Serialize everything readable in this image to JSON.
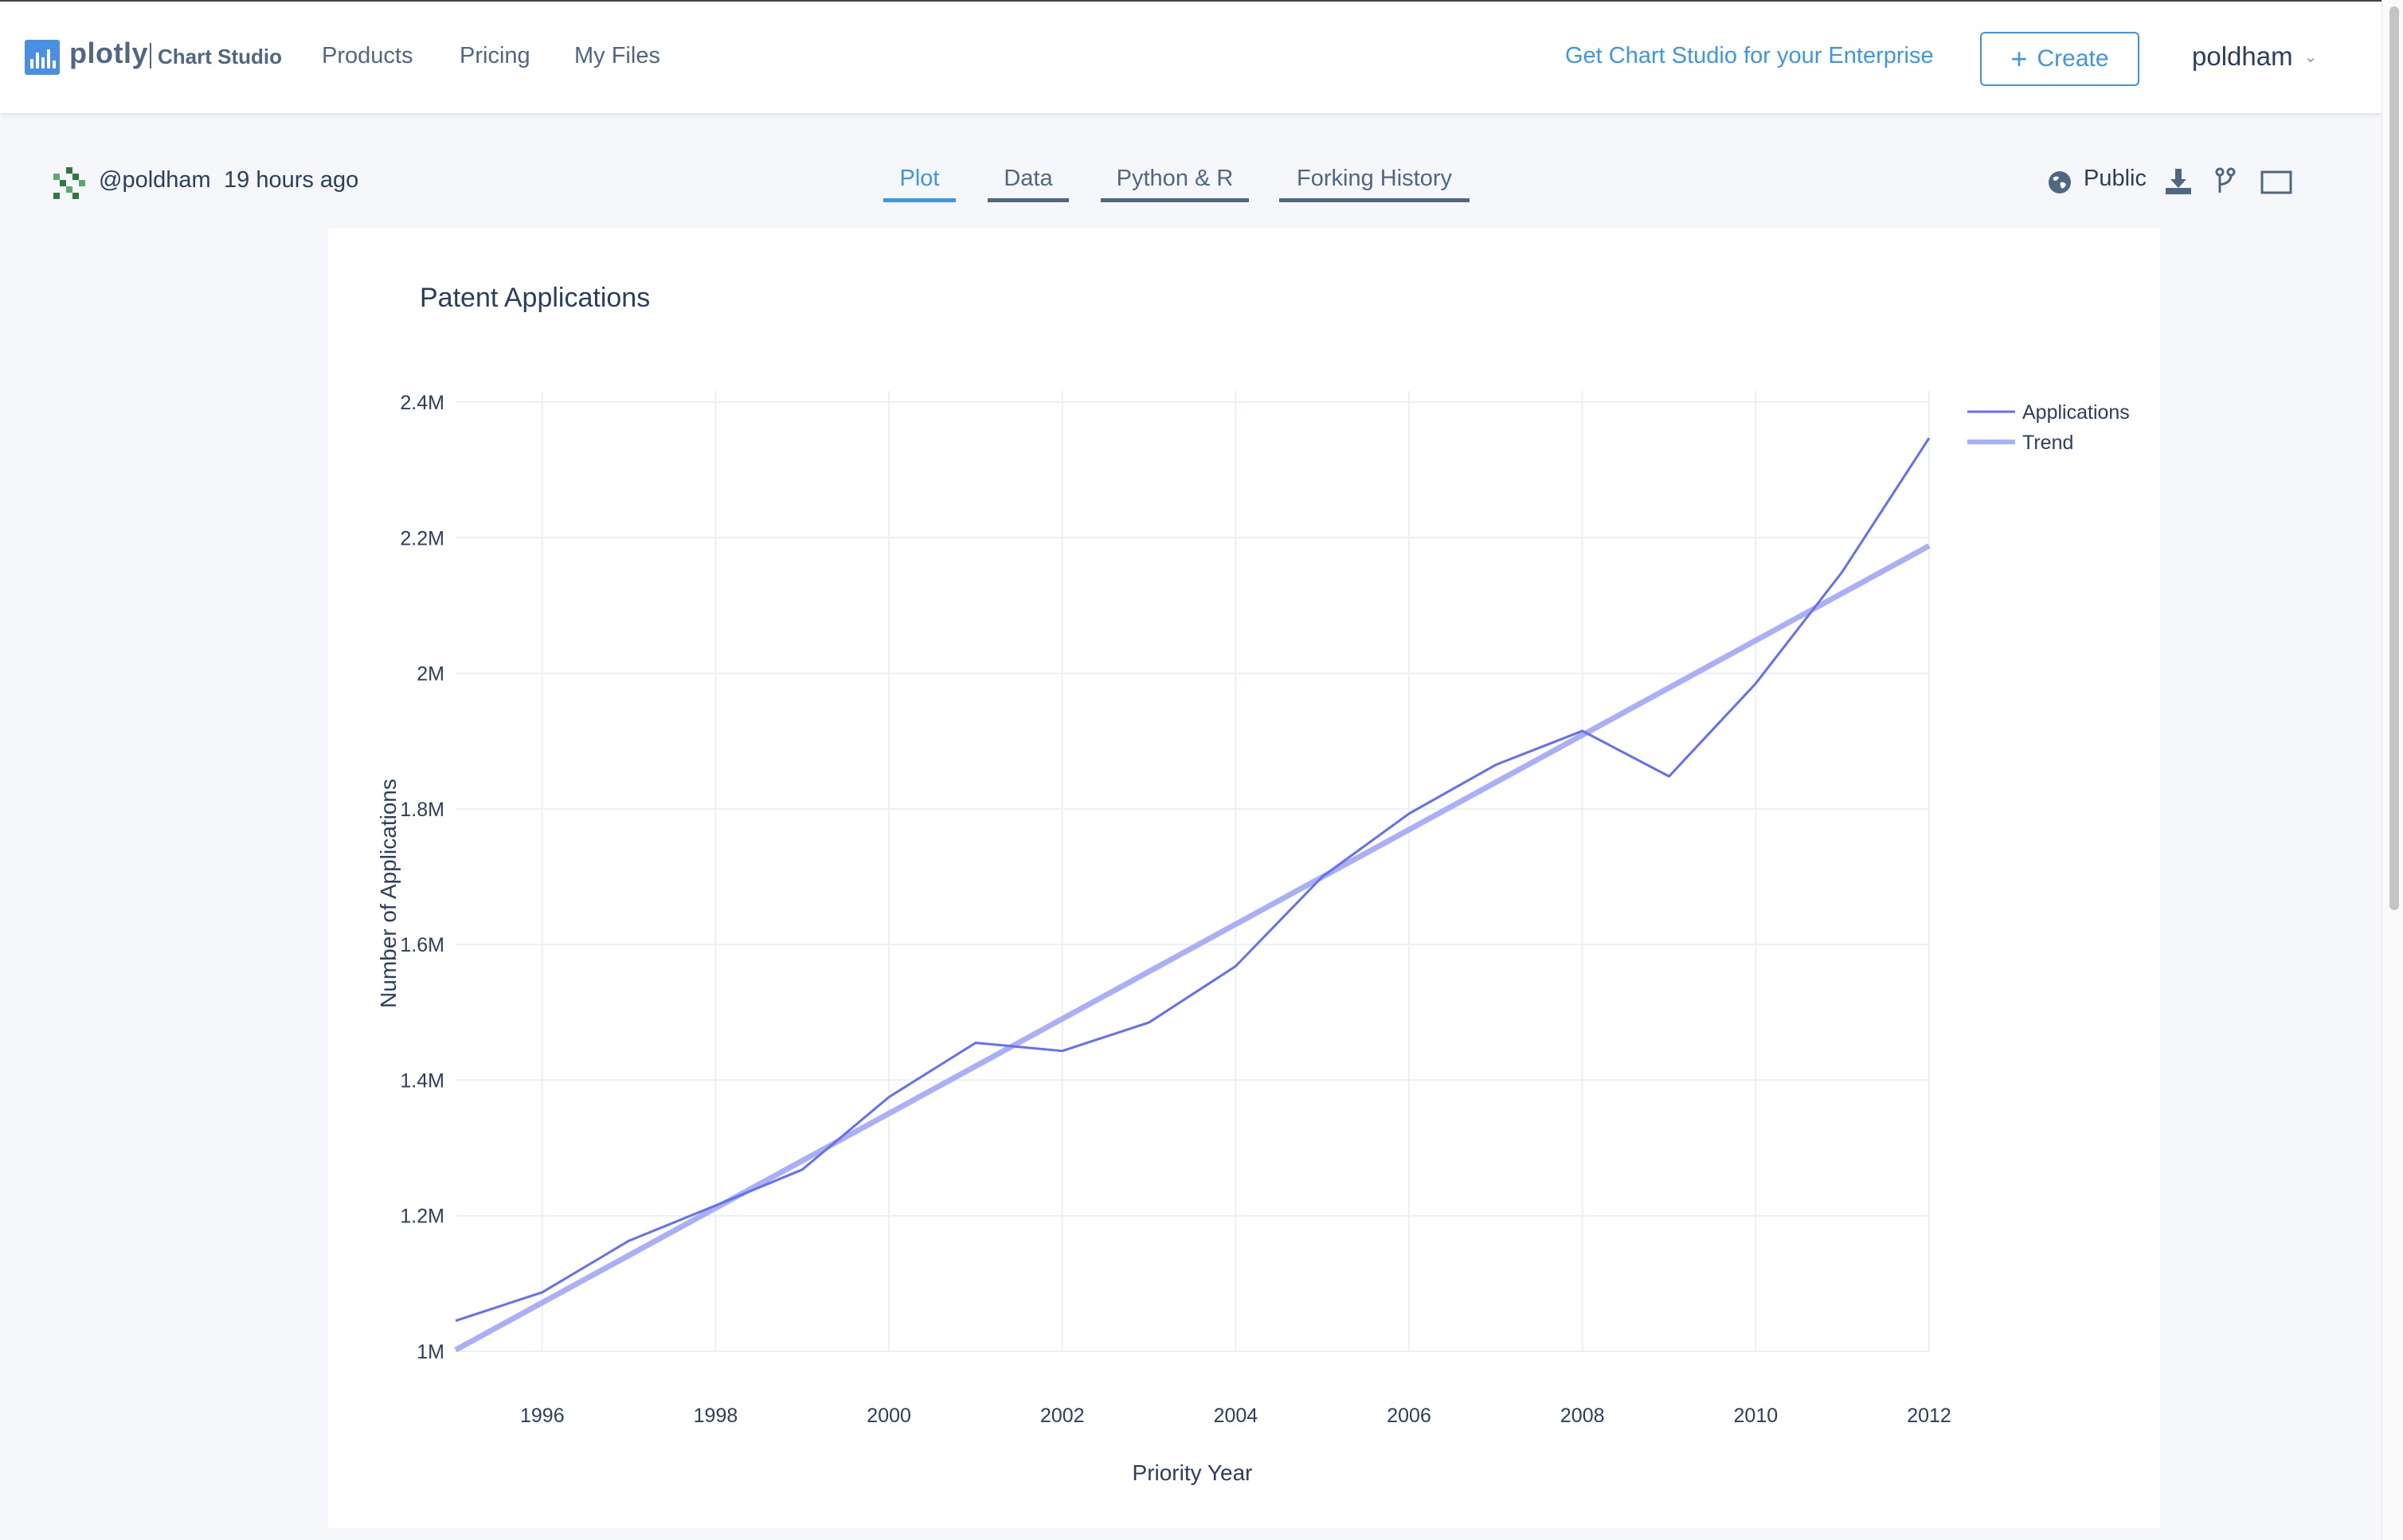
{
  "navbar": {
    "logo_word": "plotly",
    "logo_sub": "Chart Studio",
    "links": [
      "Products",
      "Pricing",
      "My Files"
    ],
    "enterprise_link": "Get Chart Studio for your Enterprise",
    "create_label": "Create",
    "username": "poldham"
  },
  "subbar": {
    "author": "@poldham",
    "time_ago": "19 hours ago",
    "tabs": [
      {
        "label": "Plot",
        "active": true
      },
      {
        "label": "Data",
        "active": false
      },
      {
        "label": "Python & R",
        "active": false
      },
      {
        "label": "Forking History",
        "active": false
      }
    ],
    "visibility": "Public",
    "icons": [
      "globe-icon",
      "download-icon",
      "fork-icon",
      "fullscreen-icon"
    ]
  },
  "colors": {
    "accent": "#3c97e6",
    "applications_line": "#636efa",
    "trend_line": "#aab0f7",
    "text": "#2a3f5f"
  },
  "chart_data": {
    "type": "line",
    "title": "Patent Applications",
    "xlabel": "Priority Year",
    "ylabel": "Number of Applications",
    "xlim": [
      1995,
      2012
    ],
    "ylim": [
      1000000,
      2400000
    ],
    "x_ticks": [
      1996,
      1998,
      2000,
      2002,
      2004,
      2006,
      2008,
      2010,
      2012
    ],
    "y_ticks": [
      {
        "value": 1000000,
        "label": "1M"
      },
      {
        "value": 1200000,
        "label": "1.2M"
      },
      {
        "value": 1400000,
        "label": "1.4M"
      },
      {
        "value": 1600000,
        "label": "1.6M"
      },
      {
        "value": 1800000,
        "label": "1.8M"
      },
      {
        "value": 2000000,
        "label": "2M"
      },
      {
        "value": 2200000,
        "label": "2.2M"
      },
      {
        "value": 2400000,
        "label": "2.4M"
      }
    ],
    "grid": true,
    "legend_position": "top-right",
    "series": [
      {
        "name": "Applications",
        "x": [
          1995,
          1996,
          1997,
          1998,
          1999,
          2000,
          2001,
          2002,
          2003,
          2004,
          2005,
          2006,
          2007,
          2008,
          2009,
          2010,
          2011,
          2012
        ],
        "y": [
          1045000,
          1087000,
          1163000,
          1215000,
          1268000,
          1375000,
          1455000,
          1443000,
          1485000,
          1568000,
          1700000,
          1793000,
          1865000,
          1915000,
          1848000,
          1985000,
          2150000,
          2347000
        ]
      },
      {
        "name": "Trend",
        "x": [
          1995,
          2012
        ],
        "y": [
          1002000,
          2188000
        ]
      }
    ]
  }
}
